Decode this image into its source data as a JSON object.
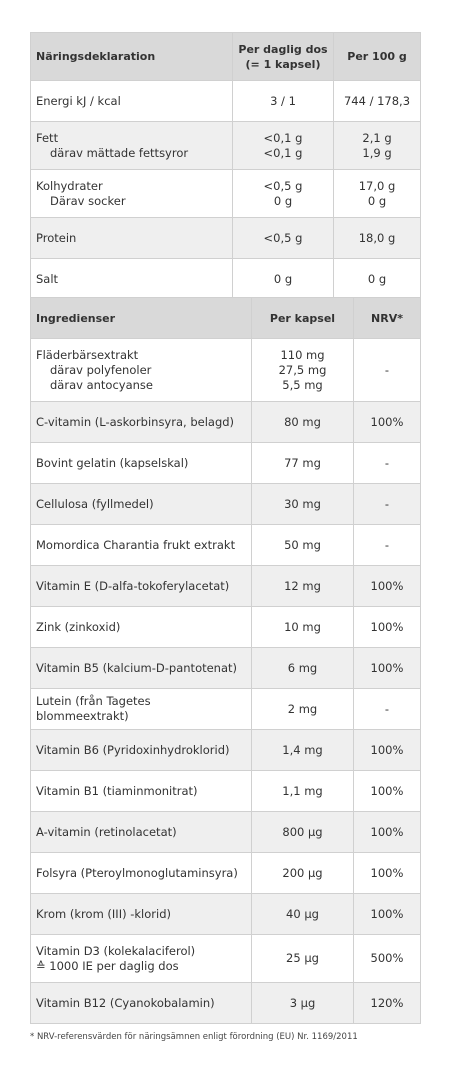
{
  "table1": {
    "header": [
      [
        "Näringsdeklaration"
      ],
      [
        "Per daglig dos",
        "(= 1 kapsel)"
      ],
      [
        "Per 100 g"
      ]
    ],
    "rows": [
      [
        [
          "Energi  kJ / kcal"
        ],
        [
          "3 / 1"
        ],
        [
          "744 / 178,3"
        ]
      ],
      [
        [
          "Fett",
          "därav mättade fettsyror"
        ],
        [
          "<0,1 g",
          "<0,1 g"
        ],
        [
          "2,1 g",
          "1,9 g"
        ]
      ],
      [
        [
          "Kolhydrater",
          "Därav socker"
        ],
        [
          "<0,5 g",
          "0 g"
        ],
        [
          "17,0 g",
          "0 g"
        ]
      ],
      [
        [
          "Protein"
        ],
        [
          "<0,5 g"
        ],
        [
          "18,0 g"
        ]
      ],
      [
        [
          "Salt"
        ],
        [
          "0 g"
        ],
        [
          "0 g"
        ]
      ]
    ]
  },
  "table2": {
    "header": [
      [
        "Ingredienser"
      ],
      [
        "Per kapsel"
      ],
      [
        "NRV*"
      ]
    ],
    "rows": [
      [
        [
          "Fläderbärsextrakt",
          "därav polyfenoler",
          "därav antocyanse"
        ],
        [
          "110 mg",
          "27,5 mg",
          "5,5 mg"
        ],
        [
          "-"
        ]
      ],
      [
        [
          "C-vitamin (L-askorbinsyra, belagd)"
        ],
        [
          "80 mg"
        ],
        [
          "100%"
        ]
      ],
      [
        [
          "Bovint gelatin (kapselskal)"
        ],
        [
          "77 mg"
        ],
        [
          "-"
        ]
      ],
      [
        [
          "Cellulosa (fyllmedel)"
        ],
        [
          "30 mg"
        ],
        [
          "-"
        ]
      ],
      [
        [
          "Momordica Charantia frukt extrakt"
        ],
        [
          "50 mg"
        ],
        [
          "-"
        ]
      ],
      [
        [
          "Vitamin E (D-alfa-tokoferylacetat)"
        ],
        [
          "12 mg"
        ],
        [
          "100%"
        ]
      ],
      [
        [
          "Zink (zinkoxid)"
        ],
        [
          "10 mg"
        ],
        [
          "100%"
        ]
      ],
      [
        [
          "Vitamin B5 (kalcium-D-pantotenat)"
        ],
        [
          "6 mg"
        ],
        [
          "100%"
        ]
      ],
      [
        [
          "Lutein (från Tagetes blommeextrakt)"
        ],
        [
          "2 mg"
        ],
        [
          "-"
        ]
      ],
      [
        [
          "Vitamin B6 (Pyridoxinhydroklorid)"
        ],
        [
          "1,4 mg"
        ],
        [
          "100%"
        ]
      ],
      [
        [
          "Vitamin B1 (tiaminmonitrat)"
        ],
        [
          "1,1 mg"
        ],
        [
          "100%"
        ]
      ],
      [
        [
          "A-vitamin (retinolacetat)"
        ],
        [
          "800 µg"
        ],
        [
          "100%"
        ]
      ],
      [
        [
          "Folsyra (Pteroylmonoglutaminsyra)"
        ],
        [
          "200 µg"
        ],
        [
          "100%"
        ]
      ],
      [
        [
          "Krom (krom (III) -klorid)"
        ],
        [
          "40 µg"
        ],
        [
          "100%"
        ]
      ],
      [
        [
          "Vitamin D3 (kolekalaciferol)",
          "≙ 1000 IE per daglig dos"
        ],
        [
          "25 µg"
        ],
        [
          "500%"
        ]
      ],
      [
        [
          "Vitamin B12 (Cyanokobalamin)"
        ],
        [
          "3 µg"
        ],
        [
          "120%"
        ]
      ]
    ]
  },
  "footnote": "* NRV-referensvärden för näringsämnen enligt förordning (EU) Nr. 1169/2011"
}
